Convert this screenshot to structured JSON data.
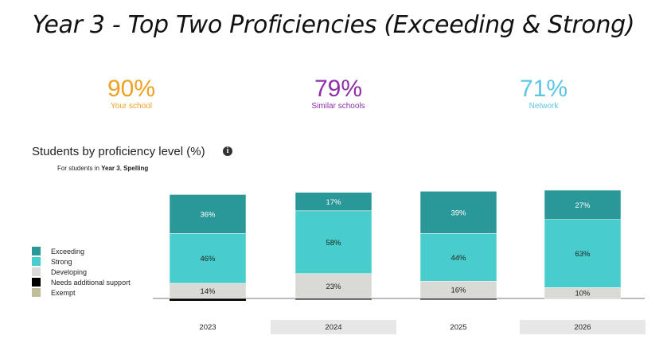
{
  "page": {
    "title": "Year 3 - Top Two Proficiencies (Exceeding & Strong)"
  },
  "kpis": [
    {
      "value": "90%",
      "label": "Your school",
      "color": "#f0a020"
    },
    {
      "value": "79%",
      "label": "Similar schools",
      "color": "#8e2ea8"
    },
    {
      "value": "71%",
      "label": "Network",
      "color": "#5cc5e6"
    }
  ],
  "chart_header": {
    "title": "Students by proficiency level (%)",
    "info_icon": "info-icon",
    "subtitle_prefix": "For students in ",
    "subtitle_year": "Year 3",
    "subtitle_sep": ", ",
    "subtitle_subject": "Spelling"
  },
  "chart_data": {
    "type": "bar",
    "stacked": true,
    "categories": [
      "2023",
      "2024",
      "2025",
      "2026"
    ],
    "series": [
      {
        "name": "Needs additional support",
        "color": "#000000",
        "values": [
          2,
          1,
          1,
          0
        ]
      },
      {
        "name": "Developing",
        "color": "#d9d9d6",
        "values": [
          14,
          23,
          16,
          10
        ]
      },
      {
        "name": "Strong",
        "color": "#48cccc",
        "values": [
          46,
          58,
          44,
          63
        ]
      },
      {
        "name": "Exceeding",
        "color": "#2a9898",
        "values": [
          36,
          17,
          39,
          27
        ]
      }
    ],
    "segment_labels": [
      [
        "",
        "14%",
        "46%",
        "36%"
      ],
      [
        "",
        "23%",
        "58%",
        "17%"
      ],
      [
        "",
        "16%",
        "44%",
        "39%"
      ],
      [
        "",
        "10%",
        "63%",
        "27%"
      ]
    ],
    "legend": [
      {
        "name": "Exceeding",
        "color": "#2a9898"
      },
      {
        "name": "Strong",
        "color": "#48cccc"
      },
      {
        "name": "Developing",
        "color": "#d9d9d6"
      },
      {
        "name": "Needs additional support",
        "color": "#000000"
      },
      {
        "name": "Exempt",
        "color": "#c0bd9a"
      }
    ],
    "legend_position": "left",
    "highlighted_categories": [
      "2024",
      "2026"
    ],
    "ylim": [
      0,
      100
    ]
  }
}
